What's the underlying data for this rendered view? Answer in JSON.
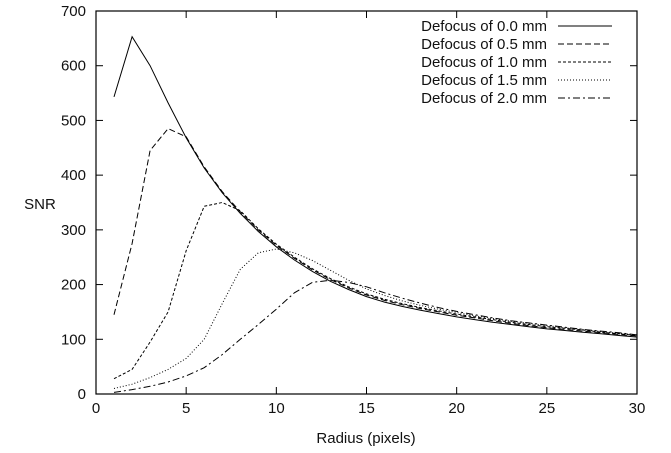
{
  "chart_data": {
    "type": "line",
    "xlabel": "Radius (pixels)",
    "ylabel": "SNR",
    "xlim": [
      0,
      30
    ],
    "ylim": [
      0,
      700
    ],
    "xticks": [
      0,
      5,
      10,
      15,
      20,
      25,
      30
    ],
    "yticks": [
      0,
      100,
      200,
      300,
      400,
      500,
      600,
      700
    ],
    "grid": false,
    "legend_position": "top-right",
    "x": [
      1,
      2,
      3,
      4,
      5,
      6,
      7,
      8,
      9,
      10,
      11,
      12,
      13,
      14,
      15,
      16,
      17,
      18,
      19,
      20,
      21,
      22,
      23,
      24,
      25,
      26,
      27,
      28,
      29,
      30
    ],
    "series": [
      {
        "name": "Defocus of 0.0 mm",
        "dash": "",
        "values": [
          543,
          653,
          600,
          532,
          468,
          413,
          368,
          330,
          297,
          269,
          245,
          224,
          206,
          191,
          178,
          168,
          160,
          153,
          147,
          141,
          136,
          131,
          127,
          123,
          119,
          116,
          113,
          110,
          107,
          104
        ]
      },
      {
        "name": "Defocus of 0.5 mm",
        "dash": "6,3",
        "values": [
          145,
          275,
          445,
          485,
          470,
          415,
          370,
          333,
          300,
          272,
          248,
          227,
          209,
          194,
          181,
          171,
          163,
          156,
          150,
          144,
          139,
          134,
          129,
          125,
          121,
          118,
          115,
          112,
          109,
          106
        ]
      },
      {
        "name": "Defocus of 1.0 mm",
        "dash": "3,2",
        "values": [
          28,
          45,
          95,
          150,
          262,
          343,
          350,
          335,
          302,
          274,
          250,
          229,
          211,
          196,
          183,
          173,
          165,
          158,
          152,
          146,
          141,
          136,
          131,
          127,
          123,
          120,
          117,
          113,
          110,
          107
        ]
      },
      {
        "name": "Defocus of 1.5 mm",
        "dash": "1,2",
        "values": [
          10,
          18,
          30,
          45,
          65,
          100,
          165,
          228,
          258,
          265,
          258,
          244,
          226,
          208,
          192,
          180,
          170,
          162,
          155,
          149,
          143,
          138,
          133,
          129,
          125,
          121,
          118,
          114,
          111,
          108
        ]
      },
      {
        "name": "Defocus of 2.0 mm",
        "dash": "7,3,2,3",
        "values": [
          3,
          8,
          14,
          22,
          33,
          48,
          72,
          100,
          127,
          155,
          185,
          204,
          208,
          204,
          196,
          185,
          175,
          166,
          158,
          151,
          145,
          139,
          134,
          130,
          126,
          122,
          118,
          115,
          112,
          108
        ]
      }
    ]
  }
}
